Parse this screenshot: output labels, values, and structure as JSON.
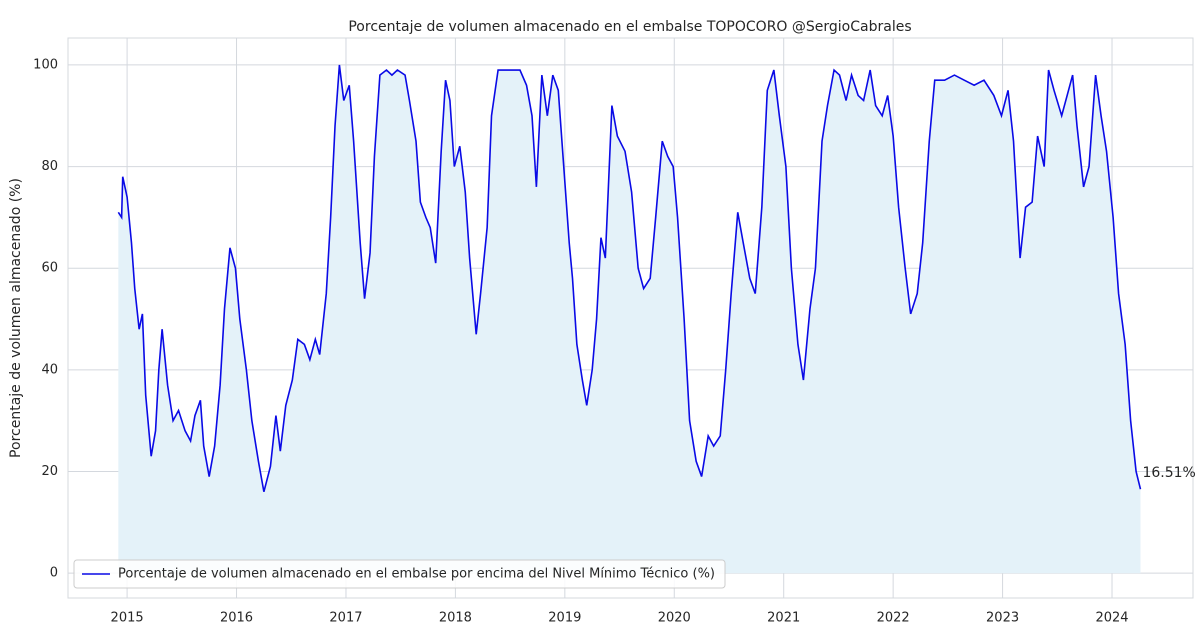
{
  "chart_data": {
    "type": "line",
    "title": "Porcentaje de volumen almacenado en el embalse TOPOCORO @SergioCabrales",
    "ylabel": "Porcentaje de volumen almacenado (%)",
    "annotation": "16.51%",
    "x": [
      2014.92,
      2014.95,
      2014.96,
      2015.0,
      2015.04,
      2015.07,
      2015.11,
      2015.14,
      2015.17,
      2015.22,
      2015.26,
      2015.29,
      2015.32,
      2015.37,
      2015.42,
      2015.47,
      2015.53,
      2015.58,
      2015.62,
      2015.67,
      2015.7,
      2015.75,
      2015.8,
      2015.85,
      2015.89,
      2015.94,
      2015.99,
      2016.03,
      2016.09,
      2016.14,
      2016.2,
      2016.25,
      2016.31,
      2016.36,
      2016.4,
      2016.45,
      2016.51,
      2016.56,
      2016.62,
      2016.67,
      2016.72,
      2016.76,
      2016.82,
      2016.86,
      2016.9,
      2016.94,
      2016.98,
      2017.03,
      2017.07,
      2017.13,
      2017.17,
      2017.22,
      2017.26,
      2017.31,
      2017.37,
      2017.42,
      2017.47,
      2017.54,
      2017.58,
      2017.64,
      2017.68,
      2017.73,
      2017.77,
      2017.82,
      2017.87,
      2017.91,
      2017.95,
      2017.99,
      2018.04,
      2018.09,
      2018.13,
      2018.19,
      2018.23,
      2018.29,
      2018.33,
      2018.39,
      2018.45,
      2018.52,
      2018.59,
      2018.65,
      2018.7,
      2018.74,
      2018.79,
      2018.84,
      2018.89,
      2018.94,
      2018.99,
      2019.04,
      2019.07,
      2019.11,
      2019.16,
      2019.2,
      2019.25,
      2019.29,
      2019.33,
      2019.37,
      2019.43,
      2019.48,
      2019.55,
      2019.61,
      2019.67,
      2019.72,
      2019.78,
      2019.83,
      2019.89,
      2019.94,
      2019.99,
      2020.03,
      2020.09,
      2020.14,
      2020.2,
      2020.25,
      2020.31,
      2020.36,
      2020.42,
      2020.47,
      2020.52,
      2020.58,
      2020.63,
      2020.69,
      2020.74,
      2020.8,
      2020.85,
      2020.91,
      2020.96,
      2021.02,
      2021.07,
      2021.13,
      2021.18,
      2021.24,
      2021.29,
      2021.35,
      2021.4,
      2021.46,
      2021.51,
      2021.57,
      2021.62,
      2021.68,
      2021.73,
      2021.79,
      2021.84,
      2021.9,
      2021.95,
      2022.0,
      2022.05,
      2022.11,
      2022.16,
      2022.22,
      2022.27,
      2022.33,
      2022.38,
      2022.47,
      2022.56,
      2022.65,
      2022.74,
      2022.83,
      2022.92,
      2022.99,
      2023.05,
      2023.1,
      2023.16,
      2023.21,
      2023.27,
      2023.32,
      2023.38,
      2023.42,
      2023.47,
      2023.54,
      2023.59,
      2023.64,
      2023.68,
      2023.74,
      2023.79,
      2023.85,
      2023.9,
      2023.95,
      2024.01,
      2024.06,
      2024.12,
      2024.17,
      2024.22,
      2024.26
    ],
    "series": [
      {
        "name": "Porcentaje de volumen almacenado en el embalse por encima del Nivel Mínimo Técnico (%)",
        "color": "#0a0ae6",
        "values": [
          71,
          70,
          78,
          74,
          65,
          56,
          48,
          51,
          35,
          23,
          28,
          40,
          48,
          37,
          30,
          32,
          28,
          26,
          31,
          34,
          25,
          19,
          25,
          37,
          52,
          64,
          60,
          50,
          40,
          30,
          22,
          16,
          21,
          31,
          24,
          33,
          38,
          46,
          45,
          42,
          46,
          43,
          55,
          70,
          88,
          100,
          93,
          96,
          85,
          65,
          54,
          63,
          82,
          98,
          99,
          98,
          99,
          98,
          93,
          85,
          73,
          70,
          68,
          61,
          83,
          97,
          93,
          80,
          84,
          75,
          62,
          47,
          55,
          68,
          90,
          99,
          99,
          99,
          99,
          96,
          90,
          76,
          98,
          90,
          98,
          95,
          80,
          65,
          58,
          45,
          38,
          33,
          40,
          50,
          66,
          62,
          92,
          86,
          83,
          75,
          60,
          56,
          58,
          70,
          85,
          82,
          80,
          70,
          50,
          30,
          22,
          19,
          27,
          25,
          27,
          40,
          55,
          71,
          65,
          58,
          55,
          72,
          95,
          99,
          90,
          80,
          60,
          45,
          38,
          52,
          60,
          85,
          92,
          99,
          98,
          93,
          98,
          94,
          93,
          99,
          92,
          90,
          94,
          86,
          72,
          60,
          51,
          55,
          65,
          85,
          97,
          97,
          98,
          97,
          96,
          97,
          94,
          90,
          95,
          85,
          62,
          72,
          73,
          86,
          80,
          99,
          95,
          90,
          94,
          98,
          88,
          76,
          80,
          98,
          90,
          83,
          70,
          55,
          45,
          30,
          20,
          16.51
        ]
      }
    ],
    "fill_color": "#e4f2f9",
    "xlim": [
      2014.46,
      2024.74
    ],
    "xticks": [
      2015,
      2016,
      2017,
      2018,
      2019,
      2020,
      2021,
      2022,
      2023,
      2024
    ],
    "ylim": [
      -4.9,
      105.3
    ],
    "yticks": [
      0,
      20,
      40,
      60,
      80,
      100
    ],
    "grid": true,
    "legend": "lower left"
  }
}
